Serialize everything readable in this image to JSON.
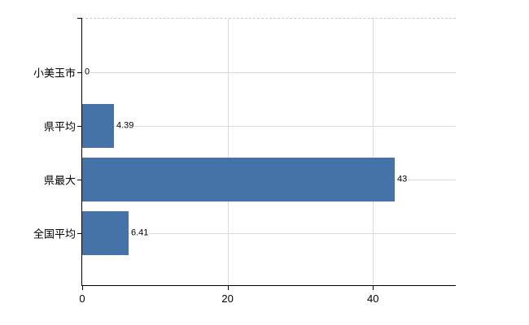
{
  "chart_data": {
    "type": "bar",
    "orientation": "horizontal",
    "title": "",
    "xlabel": "",
    "ylabel": "",
    "categories": [
      "小美玉市",
      "県平均",
      "県最大",
      "全国平均"
    ],
    "values": [
      0,
      4.39,
      43,
      6.41
    ],
    "value_labels": [
      "0",
      "4.39",
      "43",
      "6.41"
    ],
    "xlim": [
      0,
      51.5
    ],
    "xticks": [
      0,
      20,
      40
    ],
    "xtick_labels": [
      "0",
      "20",
      "40"
    ],
    "grid": true,
    "legend": false,
    "colors": {
      "bar": "#4572a7",
      "h_gridline": "#d8ddd2",
      "v_gridline": "#dcdcdc",
      "axis": "#000000",
      "top_border": "#cccccc",
      "text": "#000000"
    }
  }
}
